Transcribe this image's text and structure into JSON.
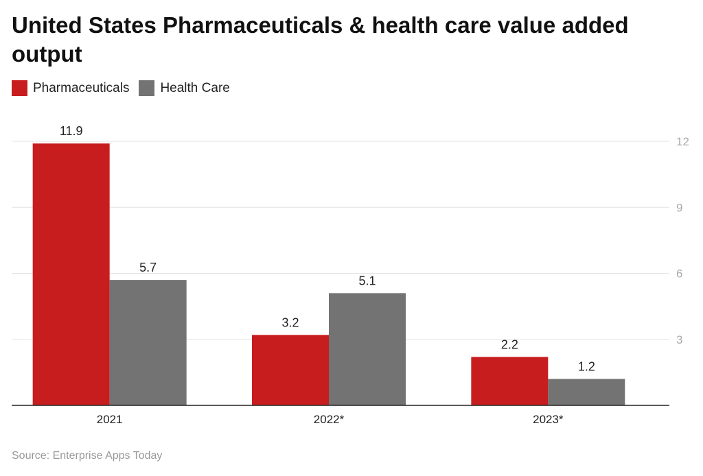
{
  "chart_data": {
    "type": "bar",
    "title": "United States Pharmaceuticals & health care value added output",
    "categories": [
      "2021",
      "2022*",
      "2023*"
    ],
    "series": [
      {
        "name": "Pharmaceuticals",
        "values": [
          11.9,
          3.2,
          2.2
        ],
        "color": "#c81d1f"
      },
      {
        "name": "Health Care",
        "values": [
          5.7,
          5.1,
          1.2
        ],
        "color": "#737373"
      }
    ],
    "ylim": [
      0,
      12
    ],
    "yticks": [
      3,
      6,
      9,
      12
    ],
    "yaxis_position": "right",
    "grid": true,
    "legend_placement": "top-left",
    "source": "Source: Enterprise Apps Today"
  }
}
